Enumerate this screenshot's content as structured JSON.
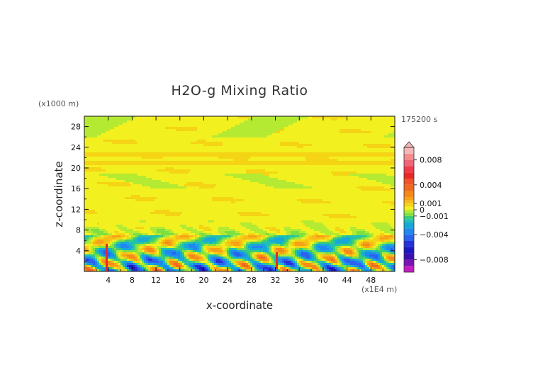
{
  "chart_data": {
    "type": "heatmap",
    "title": "H2O-g Mixing Ratio",
    "xlabel": "x-coordinate",
    "ylabel": "z-coordinate",
    "x_unit": "(x1E4 m)",
    "y_unit": "(x1000 m)",
    "time_label": "175200 s",
    "xlim": [
      0,
      52
    ],
    "ylim": [
      0,
      30
    ],
    "x_ticks": [
      4,
      8,
      12,
      16,
      20,
      24,
      28,
      32,
      36,
      40,
      44,
      48
    ],
    "y_ticks": [
      4,
      8,
      12,
      16,
      20,
      24,
      28
    ],
    "colorbar": {
      "labels": [
        {
          "text": "0.008",
          "value": 0.008
        },
        {
          "text": "0.004",
          "value": 0.004
        },
        {
          "text": "0.001",
          "value": 0.001
        },
        {
          "text": "0",
          "value": 0.0
        },
        {
          "text": "−0.001",
          "value": -0.001
        },
        {
          "text": "−0.004",
          "value": -0.004
        },
        {
          "text": "−0.008",
          "value": -0.008
        }
      ],
      "levels": [
        {
          "value": 0.01,
          "color": "#f4b8b8"
        },
        {
          "value": 0.009,
          "color": "#f48c8c"
        },
        {
          "value": 0.008,
          "color": "#f0647a"
        },
        {
          "value": 0.007,
          "color": "#ee3c4c"
        },
        {
          "value": 0.006,
          "color": "#e8292a"
        },
        {
          "value": 0.005,
          "color": "#f0542a"
        },
        {
          "value": 0.004,
          "color": "#f06a1e"
        },
        {
          "value": 0.003,
          "color": "#f58a18"
        },
        {
          "value": 0.002,
          "color": "#f5a216"
        },
        {
          "value": 0.0015,
          "color": "#f7bc18"
        },
        {
          "value": 0.001,
          "color": "#f4d414"
        },
        {
          "value": 0.0005,
          "color": "#f3f020"
        },
        {
          "value": 0.0,
          "color": "#b4ea32"
        },
        {
          "value": -0.0005,
          "color": "#7ee040"
        },
        {
          "value": -0.001,
          "color": "#3ccc78"
        },
        {
          "value": -0.0015,
          "color": "#20c0b0"
        },
        {
          "value": -0.002,
          "color": "#18a8d8"
        },
        {
          "value": -0.003,
          "color": "#2088f0"
        },
        {
          "value": -0.004,
          "color": "#2a62ee"
        },
        {
          "value": -0.005,
          "color": "#2432d8"
        },
        {
          "value": -0.006,
          "color": "#1c18c0"
        },
        {
          "value": -0.007,
          "color": "#3a10b0"
        },
        {
          "value": -0.008,
          "color": "#7a14b4"
        },
        {
          "value": -0.009,
          "color": "#c41cc0"
        },
        {
          "value": -0.01,
          "color": "#f028d8"
        }
      ]
    },
    "field_regions": [
      {
        "z_range": [
          0,
          2
        ],
        "dominant": "blue / cyan (-0.002 to -0.006)"
      },
      {
        "z_range": [
          2,
          6
        ],
        "dominant": "orange / red patches (0.002 to 0.006) and blue"
      },
      {
        "z_range": [
          6,
          10
        ],
        "dominant": "green / yellow (-0.0005 to 0.0005)"
      },
      {
        "z_range": [
          10,
          30
        ],
        "dominant": "yellow / green banded (0 to 0.0005)"
      }
    ]
  }
}
